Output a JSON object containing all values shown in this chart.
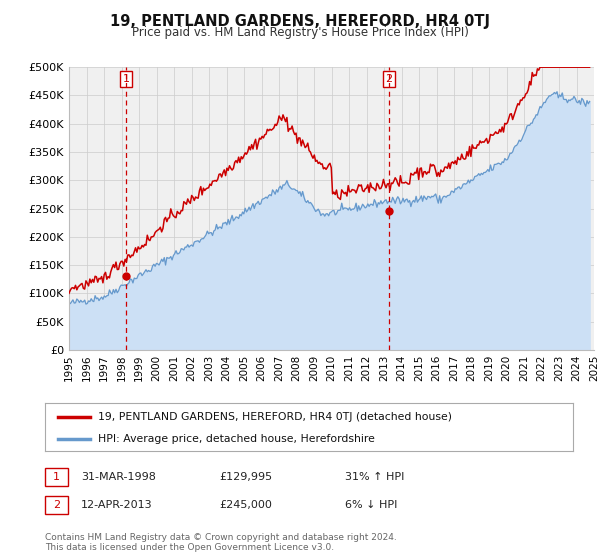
{
  "title": "19, PENTLAND GARDENS, HEREFORD, HR4 0TJ",
  "subtitle": "Price paid vs. HM Land Registry's House Price Index (HPI)",
  "legend_line1": "19, PENTLAND GARDENS, HEREFORD, HR4 0TJ (detached house)",
  "legend_line2": "HPI: Average price, detached house, Herefordshire",
  "sale1_label": "1",
  "sale1_date": "31-MAR-1998",
  "sale1_price": "£129,995",
  "sale1_hpi": "31% ↑ HPI",
  "sale1_year": 1998.25,
  "sale1_value": 129995,
  "sale2_label": "2",
  "sale2_date": "12-APR-2013",
  "sale2_price": "£245,000",
  "sale2_hpi": "6% ↓ HPI",
  "sale2_year": 2013.28,
  "sale2_value": 245000,
  "ylabel_ticks": [
    "£0",
    "£50K",
    "£100K",
    "£150K",
    "£200K",
    "£250K",
    "£300K",
    "£350K",
    "£400K",
    "£450K",
    "£500K"
  ],
  "ytick_values": [
    0,
    50000,
    100000,
    150000,
    200000,
    250000,
    300000,
    350000,
    400000,
    450000,
    500000
  ],
  "xmin": 1995,
  "xmax": 2025,
  "ymin": 0,
  "ymax": 500000,
  "price_line_color": "#cc0000",
  "hpi_line_color": "#6699cc",
  "hpi_fill_color": "#cce0f5",
  "grid_color": "#cccccc",
  "background_color": "#ffffff",
  "plot_bg_color": "#f0f0f0",
  "footnote1": "Contains HM Land Registry data © Crown copyright and database right 2024.",
  "footnote2": "This data is licensed under the Open Government Licence v3.0."
}
